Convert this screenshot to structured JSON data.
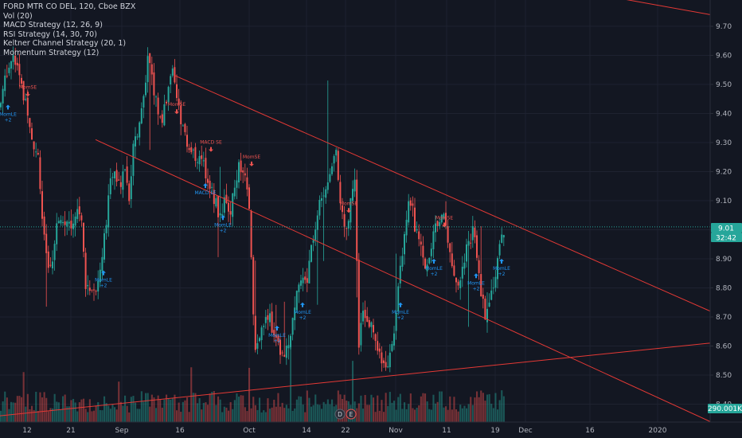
{
  "header": {
    "symbol_line": "FORD MTR CO DEL, 120, Cboe BZX",
    "indicators": [
      "Vol (20)",
      "MACD Strategy (12, 26, 9)",
      "RSI Strategy (14, 30, 70)",
      "Keltner Channel Strategy (20, 1)",
      "Momentum Strategy (12)"
    ]
  },
  "colors": {
    "background": "#131722",
    "grid": "#1e2230",
    "up": "#26a69a",
    "down": "#ef5350",
    "trendline": "#e53935",
    "signal_long": "#2196f3",
    "signal_short": "#ef5350"
  },
  "price_badges": {
    "last_price": "9.01",
    "countdown": "32:42",
    "volume": "290.001K"
  },
  "event_markers": [
    "D",
    "E"
  ],
  "chart_data": {
    "type": "candlestick",
    "y_ticks": [
      "9.70",
      "9.60",
      "9.50",
      "9.40",
      "9.30",
      "9.20",
      "9.10",
      "9.00",
      "8.90",
      "8.80",
      "8.70",
      "8.60",
      "8.50",
      "8.40"
    ],
    "x_ticks": [
      "12",
      "21",
      "Sep",
      "16",
      "Oct",
      "14",
      "22",
      "Nov",
      "11",
      "19",
      "Dec",
      "16",
      "2020"
    ],
    "ylim": [
      8.34,
      9.78
    ],
    "last_price": 9.01,
    "close_path": [
      [
        0,
        9.42
      ],
      [
        6,
        9.52
      ],
      [
        12,
        9.58
      ],
      [
        18,
        9.6
      ],
      [
        24,
        9.55
      ],
      [
        30,
        9.45
      ],
      [
        36,
        9.4
      ],
      [
        42,
        9.3
      ],
      [
        48,
        9.25
      ],
      [
        54,
        9.0
      ],
      [
        60,
        8.85
      ],
      [
        66,
        8.9
      ],
      [
        72,
        9.05
      ],
      [
        78,
        9.0
      ],
      [
        84,
        9.05
      ],
      [
        90,
        9.02
      ],
      [
        96,
        9.08
      ],
      [
        102,
        9.05
      ],
      [
        108,
        8.8
      ],
      [
        114,
        8.78
      ],
      [
        120,
        8.8
      ],
      [
        126,
        8.85
      ],
      [
        132,
        9.0
      ],
      [
        138,
        9.15
      ],
      [
        144,
        9.2
      ],
      [
        150,
        9.15
      ],
      [
        156,
        9.22
      ],
      [
        162,
        9.1
      ],
      [
        168,
        9.3
      ],
      [
        174,
        9.35
      ],
      [
        180,
        9.45
      ],
      [
        186,
        9.6
      ],
      [
        192,
        9.5
      ],
      [
        198,
        9.42
      ],
      [
        204,
        9.38
      ],
      [
        210,
        9.45
      ],
      [
        216,
        9.55
      ],
      [
        222,
        9.45
      ],
      [
        228,
        9.35
      ],
      [
        234,
        9.3
      ],
      [
        240,
        9.28
      ],
      [
        246,
        9.22
      ],
      [
        252,
        9.28
      ],
      [
        258,
        9.2
      ],
      [
        264,
        9.15
      ],
      [
        270,
        9.1
      ],
      [
        276,
        9.05
      ],
      [
        282,
        9.1
      ],
      [
        288,
        9.05
      ],
      [
        294,
        9.15
      ],
      [
        300,
        9.22
      ],
      [
        306,
        9.2
      ],
      [
        312,
        9.15
      ],
      [
        316,
        8.9
      ],
      [
        320,
        8.55
      ],
      [
        326,
        8.65
      ],
      [
        332,
        8.68
      ],
      [
        338,
        8.7
      ],
      [
        344,
        8.65
      ],
      [
        350,
        8.6
      ],
      [
        356,
        8.58
      ],
      [
        362,
        8.62
      ],
      [
        368,
        8.68
      ],
      [
        374,
        8.8
      ],
      [
        380,
        8.85
      ],
      [
        386,
        8.82
      ],
      [
        392,
        8.95
      ],
      [
        398,
        9.05
      ],
      [
        404,
        9.1
      ],
      [
        410,
        9.15
      ],
      [
        416,
        9.22
      ],
      [
        422,
        9.28
      ],
      [
        426,
        9.15
      ],
      [
        430,
        9.05
      ],
      [
        436,
        9.0
      ],
      [
        442,
        9.15
      ],
      [
        446,
        9.2
      ],
      [
        450,
        8.6
      ],
      [
        456,
        8.72
      ],
      [
        462,
        8.68
      ],
      [
        468,
        8.65
      ],
      [
        474,
        8.6
      ],
      [
        480,
        8.56
      ],
      [
        486,
        8.52
      ],
      [
        492,
        8.58
      ],
      [
        498,
        8.75
      ],
      [
        504,
        8.9
      ],
      [
        510,
        9.05
      ],
      [
        516,
        9.1
      ],
      [
        522,
        9.0
      ],
      [
        528,
        8.95
      ],
      [
        534,
        8.88
      ],
      [
        540,
        8.92
      ],
      [
        546,
        9.0
      ],
      [
        552,
        9.05
      ],
      [
        558,
        9.08
      ],
      [
        564,
        8.95
      ],
      [
        570,
        8.85
      ],
      [
        576,
        8.8
      ],
      [
        582,
        8.9
      ],
      [
        588,
        8.95
      ],
      [
        594,
        9.0
      ],
      [
        600,
        8.88
      ],
      [
        606,
        8.75
      ],
      [
        610,
        8.7
      ],
      [
        616,
        8.78
      ],
      [
        622,
        8.85
      ],
      [
        628,
        8.95
      ],
      [
        634,
        9.01
      ]
    ],
    "trendlines": [
      {
        "from": [
          "Sep 12",
          9.53
        ],
        "to": [
          "Dec 31",
          8.72
        ]
      },
      {
        "from": [
          "Aug 28",
          9.31
        ],
        "to": [
          "Dec 31",
          8.34
        ]
      },
      {
        "from": [
          "Aug 1",
          8.36
        ],
        "to": [
          "Dec 31",
          8.61
        ]
      },
      {
        "from": [
          "Dec 10",
          9.8
        ],
        "to": [
          "Dec 31",
          9.74
        ]
      }
    ],
    "signals": [
      {
        "label": "MomLE",
        "sub": "+2",
        "dir": "long",
        "x": 10,
        "price": 9.43
      },
      {
        "label": "MomSE",
        "sub": "",
        "dir": "short",
        "x": 35,
        "price": 9.48
      },
      {
        "label": "MomLE",
        "sub": "+2",
        "dir": "long",
        "x": 130,
        "price": 8.86
      },
      {
        "label": "MomSE",
        "sub": "",
        "dir": "short",
        "x": 222,
        "price": 9.42
      },
      {
        "label": "MACD LE",
        "sub": "",
        "dir": "long",
        "x": 258,
        "price": 9.16
      },
      {
        "label": "MACD SE",
        "sub": "",
        "dir": "short",
        "x": 265,
        "price": 9.29
      },
      {
        "label": "MomLE",
        "sub": "+2",
        "dir": "long",
        "x": 280,
        "price": 9.05
      },
      {
        "label": "MomSE",
        "sub": "",
        "dir": "short",
        "x": 316,
        "price": 9.24
      },
      {
        "label": "MomLE",
        "sub": "+2",
        "dir": "long",
        "x": 348,
        "price": 8.67
      },
      {
        "label": "MomLE",
        "sub": "+2",
        "dir": "long",
        "x": 380,
        "price": 8.75
      },
      {
        "label": "MomSE",
        "sub": "",
        "dir": "short",
        "x": 438,
        "price": 9.08
      },
      {
        "label": "MomLE",
        "sub": "+2",
        "dir": "long",
        "x": 503,
        "price": 8.75
      },
      {
        "label": "MomLE",
        "sub": "+2",
        "dir": "long",
        "x": 545,
        "price": 8.9
      },
      {
        "label": "MomSE",
        "sub": "",
        "dir": "short",
        "x": 558,
        "price": 9.03
      },
      {
        "label": "MomLE",
        "sub": "+2",
        "dir": "long",
        "x": 598,
        "price": 8.85
      },
      {
        "label": "MomLE",
        "sub": "+2",
        "dir": "long",
        "x": 630,
        "price": 8.9
      }
    ]
  }
}
